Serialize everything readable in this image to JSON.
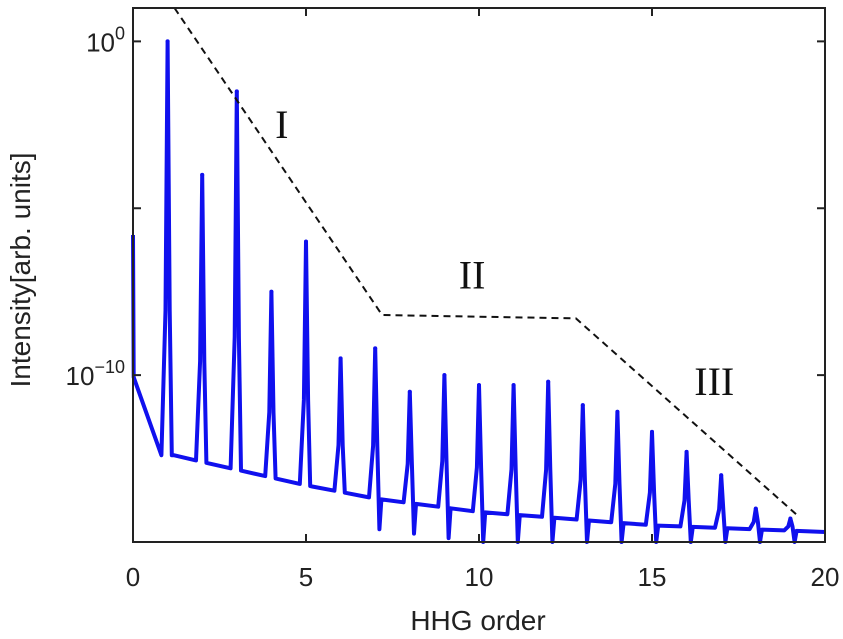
{
  "chart_data": {
    "type": "line",
    "title": "",
    "xlabel": "HHG order",
    "ylabel": "Intensity[arb. units]",
    "xlim": [
      0,
      20
    ],
    "ylog": true,
    "ylim_log10": [
      -15,
      1
    ],
    "grid": false,
    "legend": "none",
    "x_ticks": [
      {
        "value": 0,
        "label": "0"
      },
      {
        "value": 5,
        "label": "5"
      },
      {
        "value": 10,
        "label": "10"
      },
      {
        "value": 15,
        "label": "15"
      },
      {
        "value": 20,
        "label": "20"
      }
    ],
    "y_ticks": [
      {
        "log10": 0,
        "base": "10",
        "exp": "0"
      },
      {
        "log10": -10,
        "base": "10",
        "exp": "−10"
      }
    ],
    "y_minor_ticks_log10": [
      -5,
      -15
    ],
    "series": [
      {
        "color": "#1010ee",
        "baseline_log10": [
          [
            0,
            -10
          ],
          [
            0.5,
            -11.6
          ],
          [
            0.75,
            -12.4
          ],
          [
            1.2,
            -12.4
          ],
          [
            2,
            -12.6
          ],
          [
            5,
            -13.3
          ],
          [
            7,
            -13.7
          ],
          [
            10,
            -14.1
          ],
          [
            15,
            -14.5
          ],
          [
            20,
            -14.7
          ]
        ],
        "peaks": [
          {
            "order": 1,
            "log10": 0.0
          },
          {
            "order": 2,
            "log10": -4.0
          },
          {
            "order": 3,
            "log10": -1.5
          },
          {
            "order": 4,
            "log10": -7.5
          },
          {
            "order": 5,
            "log10": -6.0
          },
          {
            "order": 6,
            "log10": -9.5
          },
          {
            "order": 7,
            "log10": -9.2
          },
          {
            "order": 8,
            "log10": -10.5
          },
          {
            "order": 9,
            "log10": -10.0
          },
          {
            "order": 10,
            "log10": -10.3
          },
          {
            "order": 11,
            "log10": -10.3
          },
          {
            "order": 12,
            "log10": -10.2
          },
          {
            "order": 13,
            "log10": -10.9
          },
          {
            "order": 14,
            "log10": -11.1
          },
          {
            "order": 15,
            "log10": -11.7
          },
          {
            "order": 16,
            "log10": -12.3
          },
          {
            "order": 17,
            "log10": -13.0
          },
          {
            "order": 18,
            "log10": -14.0
          },
          {
            "order": 19,
            "log10": -14.3
          }
        ],
        "start_log10": -5.8
      }
    ],
    "envelope_log10": [
      [
        1.2,
        1.0
      ],
      [
        7.2,
        -8.2
      ],
      [
        12.8,
        -8.3
      ],
      [
        19.2,
        -14.2
      ]
    ],
    "annotations": [
      {
        "text": "I",
        "x": 4.3,
        "y_log10": -2.9
      },
      {
        "text": "II",
        "x": 9.8,
        "y_log10": -7.4
      },
      {
        "text": "III",
        "x": 16.8,
        "y_log10": -10.6
      }
    ]
  }
}
